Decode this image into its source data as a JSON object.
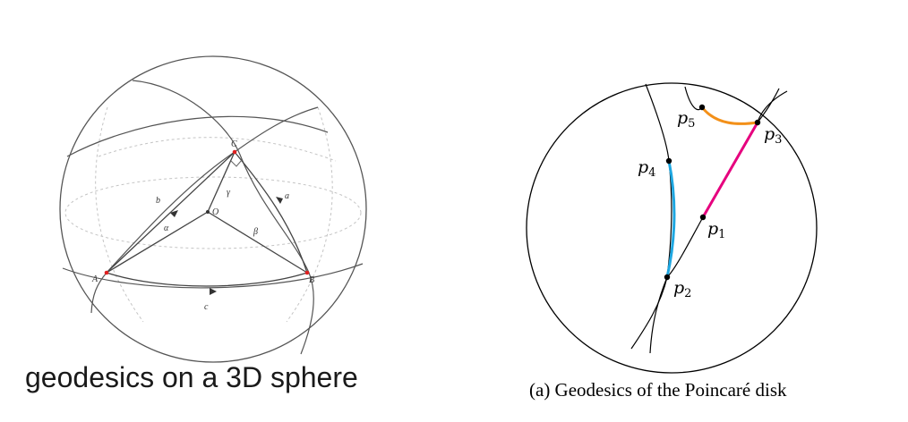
{
  "sphere": {
    "caption": "geodesics on a 3D sphere",
    "points": [
      {
        "label": "A"
      },
      {
        "label": "B"
      },
      {
        "label": "C"
      },
      {
        "label": "O"
      }
    ],
    "arcs": [
      {
        "label": "a"
      },
      {
        "label": "b"
      },
      {
        "label": "c"
      }
    ],
    "angles": [
      {
        "label": "α"
      },
      {
        "label": "β"
      },
      {
        "label": "γ"
      }
    ],
    "colors": {
      "vertex": "#e02020",
      "line": "#555555",
      "dashed": "#bbbbbb"
    }
  },
  "disk": {
    "caption": "(a) Geodesics of the Poincaré disk",
    "points": [
      {
        "base": "p",
        "sub": "1"
      },
      {
        "base": "p",
        "sub": "2"
      },
      {
        "base": "p",
        "sub": "3"
      },
      {
        "base": "p",
        "sub": "4"
      },
      {
        "base": "p",
        "sub": "5"
      }
    ],
    "geodesics": [
      {
        "from": "p1",
        "to": "p3",
        "color": "#e6007e"
      },
      {
        "from": "p2",
        "to": "p4",
        "color": "#1ea7e1"
      },
      {
        "from": "p3",
        "to": "p5",
        "color": "#f39019"
      }
    ]
  }
}
